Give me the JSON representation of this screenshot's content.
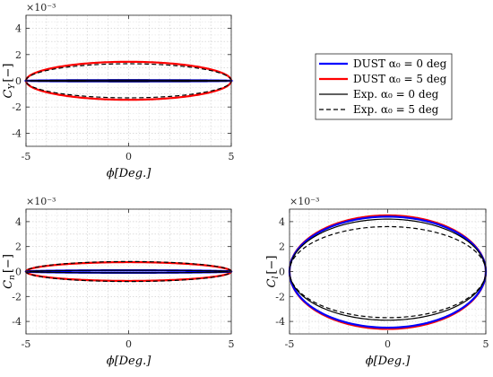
{
  "chart_data": [
    {
      "type": "line",
      "ylabel": "C_Y [−]",
      "xlabel": "ϕ[Deg.]",
      "y_exponent": "×10⁻³",
      "xlim": [
        -5,
        5
      ],
      "ylim": [
        -5,
        5
      ],
      "x_ticks": [
        "-5",
        "0",
        "5"
      ],
      "y_ticks": [
        "4",
        "2",
        "0",
        "-2",
        "-4"
      ],
      "grid": true,
      "legend": {
        "location": "right of top-left panel",
        "entries": [
          {
            "label": "DUST α₀ = 0 deg",
            "color": "#0000ff",
            "style": "solid"
          },
          {
            "label": "DUST α₀ = 5 deg",
            "color": "#ff0000",
            "style": "solid"
          },
          {
            "label": "Exp. α₀ = 0 deg",
            "color": "#000000",
            "style": "solid"
          },
          {
            "label": "Exp. α₀ = 5 deg",
            "color": "#000000",
            "style": "dashed"
          }
        ]
      },
      "series": [
        {
          "name": "DUST α₀ = 0 deg",
          "shape": "ellipse",
          "amplitude_x": 5,
          "upper_peak": 0.05,
          "lower_peak": -0.05
        },
        {
          "name": "DUST α₀ = 5 deg",
          "shape": "ellipse",
          "amplitude_x": 5,
          "upper_peak": 1.45,
          "lower_peak": -1.45
        },
        {
          "name": "Exp. α₀ = 0 deg",
          "shape": "ellipse",
          "amplitude_x": 5,
          "upper_peak": 0.05,
          "lower_peak": -0.05
        },
        {
          "name": "Exp. α₀ = 5 deg",
          "shape": "ellipse",
          "amplitude_x": 5,
          "upper_peak": 1.3,
          "lower_peak": -1.3
        }
      ]
    },
    {
      "type": "line",
      "ylabel": "C_n [−]",
      "xlabel": "ϕ[Deg.]",
      "y_exponent": "×10⁻³",
      "xlim": [
        -5,
        5
      ],
      "ylim": [
        -5,
        5
      ],
      "x_ticks": [
        "-5",
        "0",
        "5"
      ],
      "y_ticks": [
        "4",
        "2",
        "0",
        "-2",
        "-4"
      ],
      "grid": true,
      "series": [
        {
          "name": "DUST α₀ = 0 deg",
          "shape": "ellipse",
          "amplitude_x": 5,
          "upper_peak": 0.1,
          "lower_peak": -0.1
        },
        {
          "name": "DUST α₀ = 5 deg",
          "shape": "ellipse",
          "amplitude_x": 5,
          "upper_peak": 0.75,
          "lower_peak": -0.75
        },
        {
          "name": "Exp. α₀ = 0 deg",
          "shape": "ellipse",
          "amplitude_x": 5,
          "upper_peak": 0.1,
          "lower_peak": -0.1
        },
        {
          "name": "Exp. α₀ = 5 deg",
          "shape": "ellipse",
          "amplitude_x": 5,
          "upper_peak": 0.8,
          "lower_peak": -0.8
        }
      ]
    },
    {
      "type": "line",
      "ylabel": "C_l [−]",
      "xlabel": "ϕ[Deg.]",
      "y_exponent": "×10⁻³",
      "xlim": [
        -5,
        5
      ],
      "ylim": [
        -5,
        5
      ],
      "x_ticks": [
        "-5",
        "0",
        "5"
      ],
      "y_ticks": [
        "4",
        "2",
        "0",
        "-2",
        "-4"
      ],
      "grid": true,
      "series": [
        {
          "name": "DUST α₀ = 0 deg",
          "shape": "ellipse",
          "amplitude_x": 5,
          "upper_peak": 4.4,
          "lower_peak": -4.5
        },
        {
          "name": "DUST α₀ = 5 deg",
          "shape": "ellipse",
          "amplitude_x": 5,
          "upper_peak": 4.5,
          "lower_peak": -4.6
        },
        {
          "name": "Exp. α₀ = 0 deg",
          "shape": "ellipse",
          "amplitude_x": 5,
          "upper_peak": 4.2,
          "lower_peak": -3.9
        },
        {
          "name": "Exp. α₀ = 5 deg",
          "shape": "ellipse",
          "amplitude_x": 5,
          "upper_peak": 3.6,
          "lower_peak": -3.7
        }
      ]
    }
  ]
}
